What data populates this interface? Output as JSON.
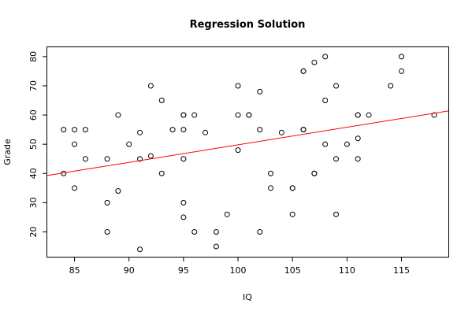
{
  "chart_data": {
    "type": "scatter",
    "title": "Regression Solution",
    "xlabel": "IQ",
    "ylabel": "Grade",
    "xlim": [
      82.5,
      119.3
    ],
    "ylim": [
      11.5,
      83.2
    ],
    "xticks": [
      85,
      90,
      95,
      100,
      105,
      110,
      115
    ],
    "yticks": [
      20,
      30,
      40,
      50,
      60,
      70,
      80
    ],
    "grid": false,
    "points": [
      {
        "x": 84,
        "y": 55
      },
      {
        "x": 84,
        "y": 40
      },
      {
        "x": 85,
        "y": 55
      },
      {
        "x": 85,
        "y": 50
      },
      {
        "x": 85,
        "y": 35
      },
      {
        "x": 86,
        "y": 55
      },
      {
        "x": 86,
        "y": 45
      },
      {
        "x": 88,
        "y": 45
      },
      {
        "x": 88,
        "y": 30
      },
      {
        "x": 88,
        "y": 20
      },
      {
        "x": 89,
        "y": 60
      },
      {
        "x": 89,
        "y": 34
      },
      {
        "x": 90,
        "y": 50
      },
      {
        "x": 91,
        "y": 54
      },
      {
        "x": 91,
        "y": 45
      },
      {
        "x": 91,
        "y": 14
      },
      {
        "x": 92,
        "y": 70
      },
      {
        "x": 92,
        "y": 46
      },
      {
        "x": 93,
        "y": 65
      },
      {
        "x": 93,
        "y": 40
      },
      {
        "x": 94,
        "y": 55
      },
      {
        "x": 95,
        "y": 60
      },
      {
        "x": 95,
        "y": 60
      },
      {
        "x": 95,
        "y": 55
      },
      {
        "x": 95,
        "y": 45
      },
      {
        "x": 95,
        "y": 30
      },
      {
        "x": 95,
        "y": 25
      },
      {
        "x": 96,
        "y": 60
      },
      {
        "x": 96,
        "y": 20
      },
      {
        "x": 97,
        "y": 54
      },
      {
        "x": 98,
        "y": 20
      },
      {
        "x": 98,
        "y": 15
      },
      {
        "x": 99,
        "y": 26
      },
      {
        "x": 100,
        "y": 70
      },
      {
        "x": 100,
        "y": 60
      },
      {
        "x": 100,
        "y": 48
      },
      {
        "x": 101,
        "y": 60
      },
      {
        "x": 101,
        "y": 60
      },
      {
        "x": 102,
        "y": 68
      },
      {
        "x": 102,
        "y": 55
      },
      {
        "x": 102,
        "y": 20
      },
      {
        "x": 103,
        "y": 40
      },
      {
        "x": 103,
        "y": 35
      },
      {
        "x": 104,
        "y": 54
      },
      {
        "x": 105,
        "y": 35
      },
      {
        "x": 105,
        "y": 35
      },
      {
        "x": 105,
        "y": 26
      },
      {
        "x": 106,
        "y": 75
      },
      {
        "x": 106,
        "y": 75
      },
      {
        "x": 106,
        "y": 55
      },
      {
        "x": 106,
        "y": 55
      },
      {
        "x": 107,
        "y": 78
      },
      {
        "x": 107,
        "y": 40
      },
      {
        "x": 107,
        "y": 40
      },
      {
        "x": 108,
        "y": 80
      },
      {
        "x": 108,
        "y": 65
      },
      {
        "x": 108,
        "y": 50
      },
      {
        "x": 109,
        "y": 70
      },
      {
        "x": 109,
        "y": 45
      },
      {
        "x": 109,
        "y": 26
      },
      {
        "x": 110,
        "y": 50
      },
      {
        "x": 111,
        "y": 60
      },
      {
        "x": 111,
        "y": 60
      },
      {
        "x": 111,
        "y": 52
      },
      {
        "x": 111,
        "y": 45
      },
      {
        "x": 112,
        "y": 60
      },
      {
        "x": 114,
        "y": 70
      },
      {
        "x": 115,
        "y": 80
      },
      {
        "x": 115,
        "y": 75
      },
      {
        "x": 118,
        "y": 60
      }
    ],
    "regression_line": {
      "color": "#ff0000",
      "x": [
        82.5,
        119.3
      ],
      "y": [
        39.3,
        61.4
      ]
    },
    "point_color": "#000000"
  }
}
